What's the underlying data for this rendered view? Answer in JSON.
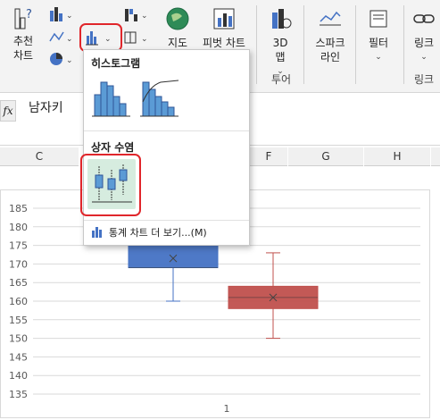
{
  "ribbon": {
    "recommended_charts": "추천\n차트",
    "maps": "지도",
    "pivot_chart": "피벗 차트",
    "map3d": "3D\n맵",
    "sparklines": "스파크\n라인",
    "filters": "필터",
    "links": "링크",
    "group_tour": "투어",
    "group_links": "링크"
  },
  "formula_bar": {
    "fx": "fx",
    "value": "남자키"
  },
  "columns": [
    "C",
    "F",
    "G",
    "H"
  ],
  "menu": {
    "histogram_header": "히스토그램",
    "boxwhisker_header": "상자 수염",
    "more_stat_charts": "통계 차트 더 보기...(M)"
  },
  "chart_data": {
    "type": "box",
    "categories": [
      "1"
    ],
    "y_ticks": [
      135,
      140,
      145,
      150,
      155,
      160,
      165,
      170,
      175,
      180,
      185
    ],
    "ylim": [
      135,
      185
    ],
    "series": [
      {
        "color": "#4472c4",
        "whisker_low": 160,
        "q1": 169,
        "median": 169,
        "mean": 171.5,
        "q3": 176,
        "whisker_high": 176
      },
      {
        "color": "#c0504d",
        "whisker_low": 150,
        "q1": 158,
        "median": 161,
        "mean": 161,
        "q3": 164,
        "whisker_high": 173
      }
    ]
  },
  "colors": {
    "accent_red": "#e0262b",
    "chart_blue": "#4472c4",
    "chart_red": "#c0504d",
    "selected_bg": "#d6ecdf"
  }
}
